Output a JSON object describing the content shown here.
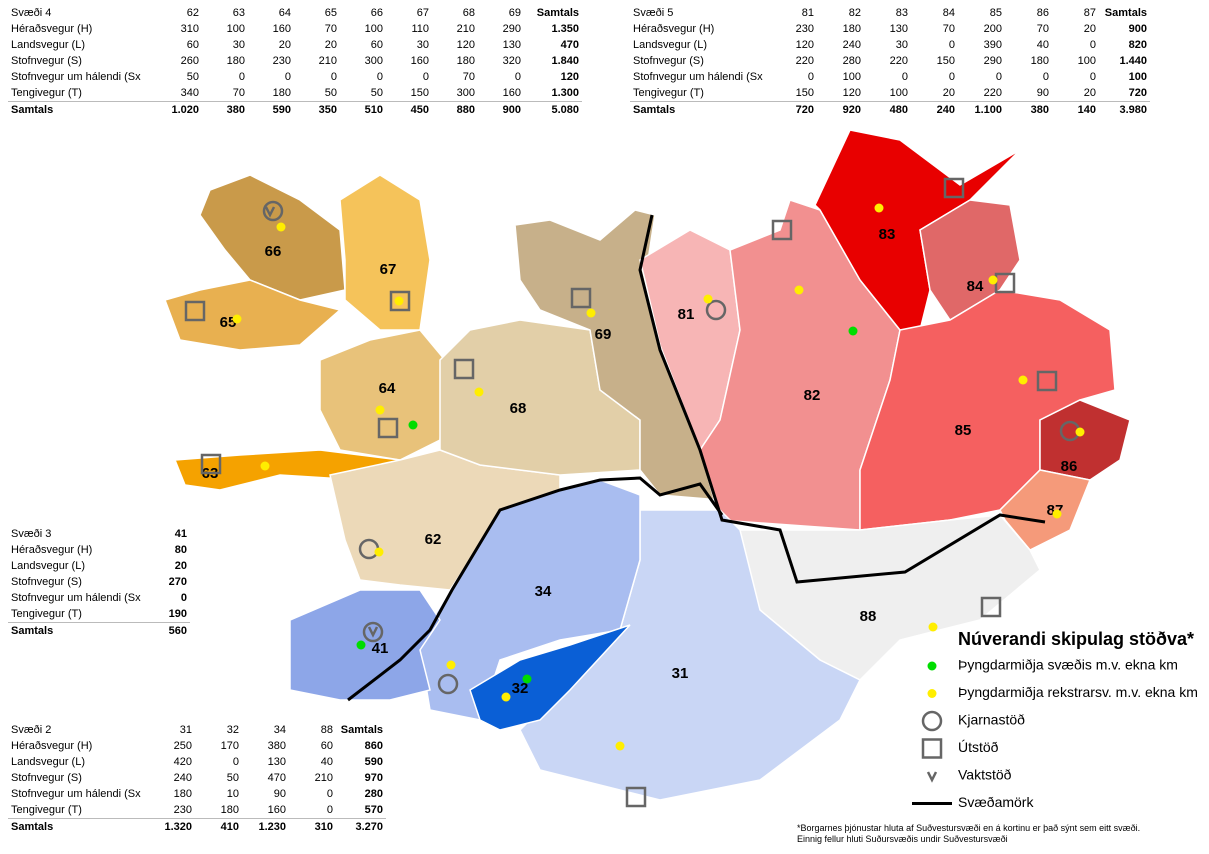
{
  "tables": [
    {
      "rows": [
        [
          "Svæði 4",
          "62",
          "63",
          "64",
          "65",
          "66",
          "67",
          "68",
          "69",
          "Samtals"
        ],
        [
          "Héraðsvegur (H)",
          "310",
          "100",
          "160",
          "70",
          "100",
          "110",
          "210",
          "290",
          "1.350"
        ],
        [
          "Landsvegur (L)",
          "60",
          "30",
          "20",
          "20",
          "60",
          "30",
          "120",
          "130",
          "470"
        ],
        [
          "Stofnvegur (S)",
          "260",
          "180",
          "230",
          "210",
          "300",
          "160",
          "180",
          "320",
          "1.840"
        ],
        [
          "Stofnvegur um hálendi (Sx",
          "50",
          "0",
          "0",
          "0",
          "0",
          "0",
          "70",
          "0",
          "120"
        ],
        [
          "Tengivegur (T)",
          "340",
          "70",
          "180",
          "50",
          "50",
          "150",
          "300",
          "160",
          "1.300"
        ],
        [
          "Samtals",
          "1.020",
          "380",
          "590",
          "350",
          "510",
          "450",
          "880",
          "900",
          "5.080"
        ]
      ]
    },
    {
      "rows": [
        [
          "Svæði 5",
          "81",
          "82",
          "83",
          "84",
          "85",
          "86",
          "87",
          "Samtals"
        ],
        [
          "Héraðsvegur (H)",
          "230",
          "180",
          "130",
          "70",
          "200",
          "70",
          "20",
          "900"
        ],
        [
          "Landsvegur (L)",
          "120",
          "240",
          "30",
          "0",
          "390",
          "40",
          "0",
          "820"
        ],
        [
          "Stofnvegur (S)",
          "220",
          "280",
          "220",
          "150",
          "290",
          "180",
          "100",
          "1.440"
        ],
        [
          "Stofnvegur um hálendi (Sx",
          "0",
          "100",
          "0",
          "0",
          "0",
          "0",
          "0",
          "100"
        ],
        [
          "Tengivegur (T)",
          "150",
          "120",
          "100",
          "20",
          "220",
          "90",
          "20",
          "720"
        ],
        [
          "Samtals",
          "720",
          "920",
          "480",
          "240",
          "1.100",
          "380",
          "140",
          "3.980"
        ]
      ]
    },
    {
      "rows": [
        [
          "Svæði 3",
          "41"
        ],
        [
          "Héraðsvegur (H)",
          "80"
        ],
        [
          "Landsvegur (L)",
          "20"
        ],
        [
          "Stofnvegur (S)",
          "270"
        ],
        [
          "Stofnvegur um hálendi (Sx",
          "0"
        ],
        [
          "Tengivegur (T)",
          "190"
        ],
        [
          "Samtals",
          "560"
        ]
      ]
    },
    {
      "rows": [
        [
          "Svæði 2",
          "31",
          "32",
          "34",
          "88",
          "Samtals"
        ],
        [
          "Héraðsvegur (H)",
          "250",
          "170",
          "380",
          "60",
          "860"
        ],
        [
          "Landsvegur (L)",
          "420",
          "0",
          "130",
          "40",
          "590"
        ],
        [
          "Stofnvegur (S)",
          "240",
          "50",
          "470",
          "210",
          "970"
        ],
        [
          "Stofnvegur um hálendi (Sx",
          "180",
          "10",
          "90",
          "0",
          "280"
        ],
        [
          "Tengivegur (T)",
          "230",
          "180",
          "160",
          "0",
          "570"
        ],
        [
          "Samtals",
          "1.320",
          "410",
          "1.230",
          "310",
          "3.270"
        ]
      ]
    }
  ],
  "regions": [
    "66",
    "67",
    "65",
    "64",
    "63",
    "62",
    "68",
    "69",
    "81",
    "82",
    "83",
    "84",
    "85",
    "86",
    "87",
    "88",
    "31",
    "34",
    "32",
    "41"
  ],
  "legend": {
    "title": "Núverandi skipulag stöðva*",
    "items": [
      "Þyngdarmiðja svæðis m.v. ekna km",
      "Þyngdarmiðja rekstrarsv. m.v. ekna km",
      "Kjarnastöð",
      "Útstöð",
      "Vaktstöð",
      "Svæðamörk"
    ]
  },
  "footnote": [
    "*Borgarnes þjónustar hluta af Suðvestursvæði en á kortinu er það sýnt sem eitt svæði.",
    "Einnig fellur hluti Suðursvæðis undir Suðvestursvæði"
  ]
}
